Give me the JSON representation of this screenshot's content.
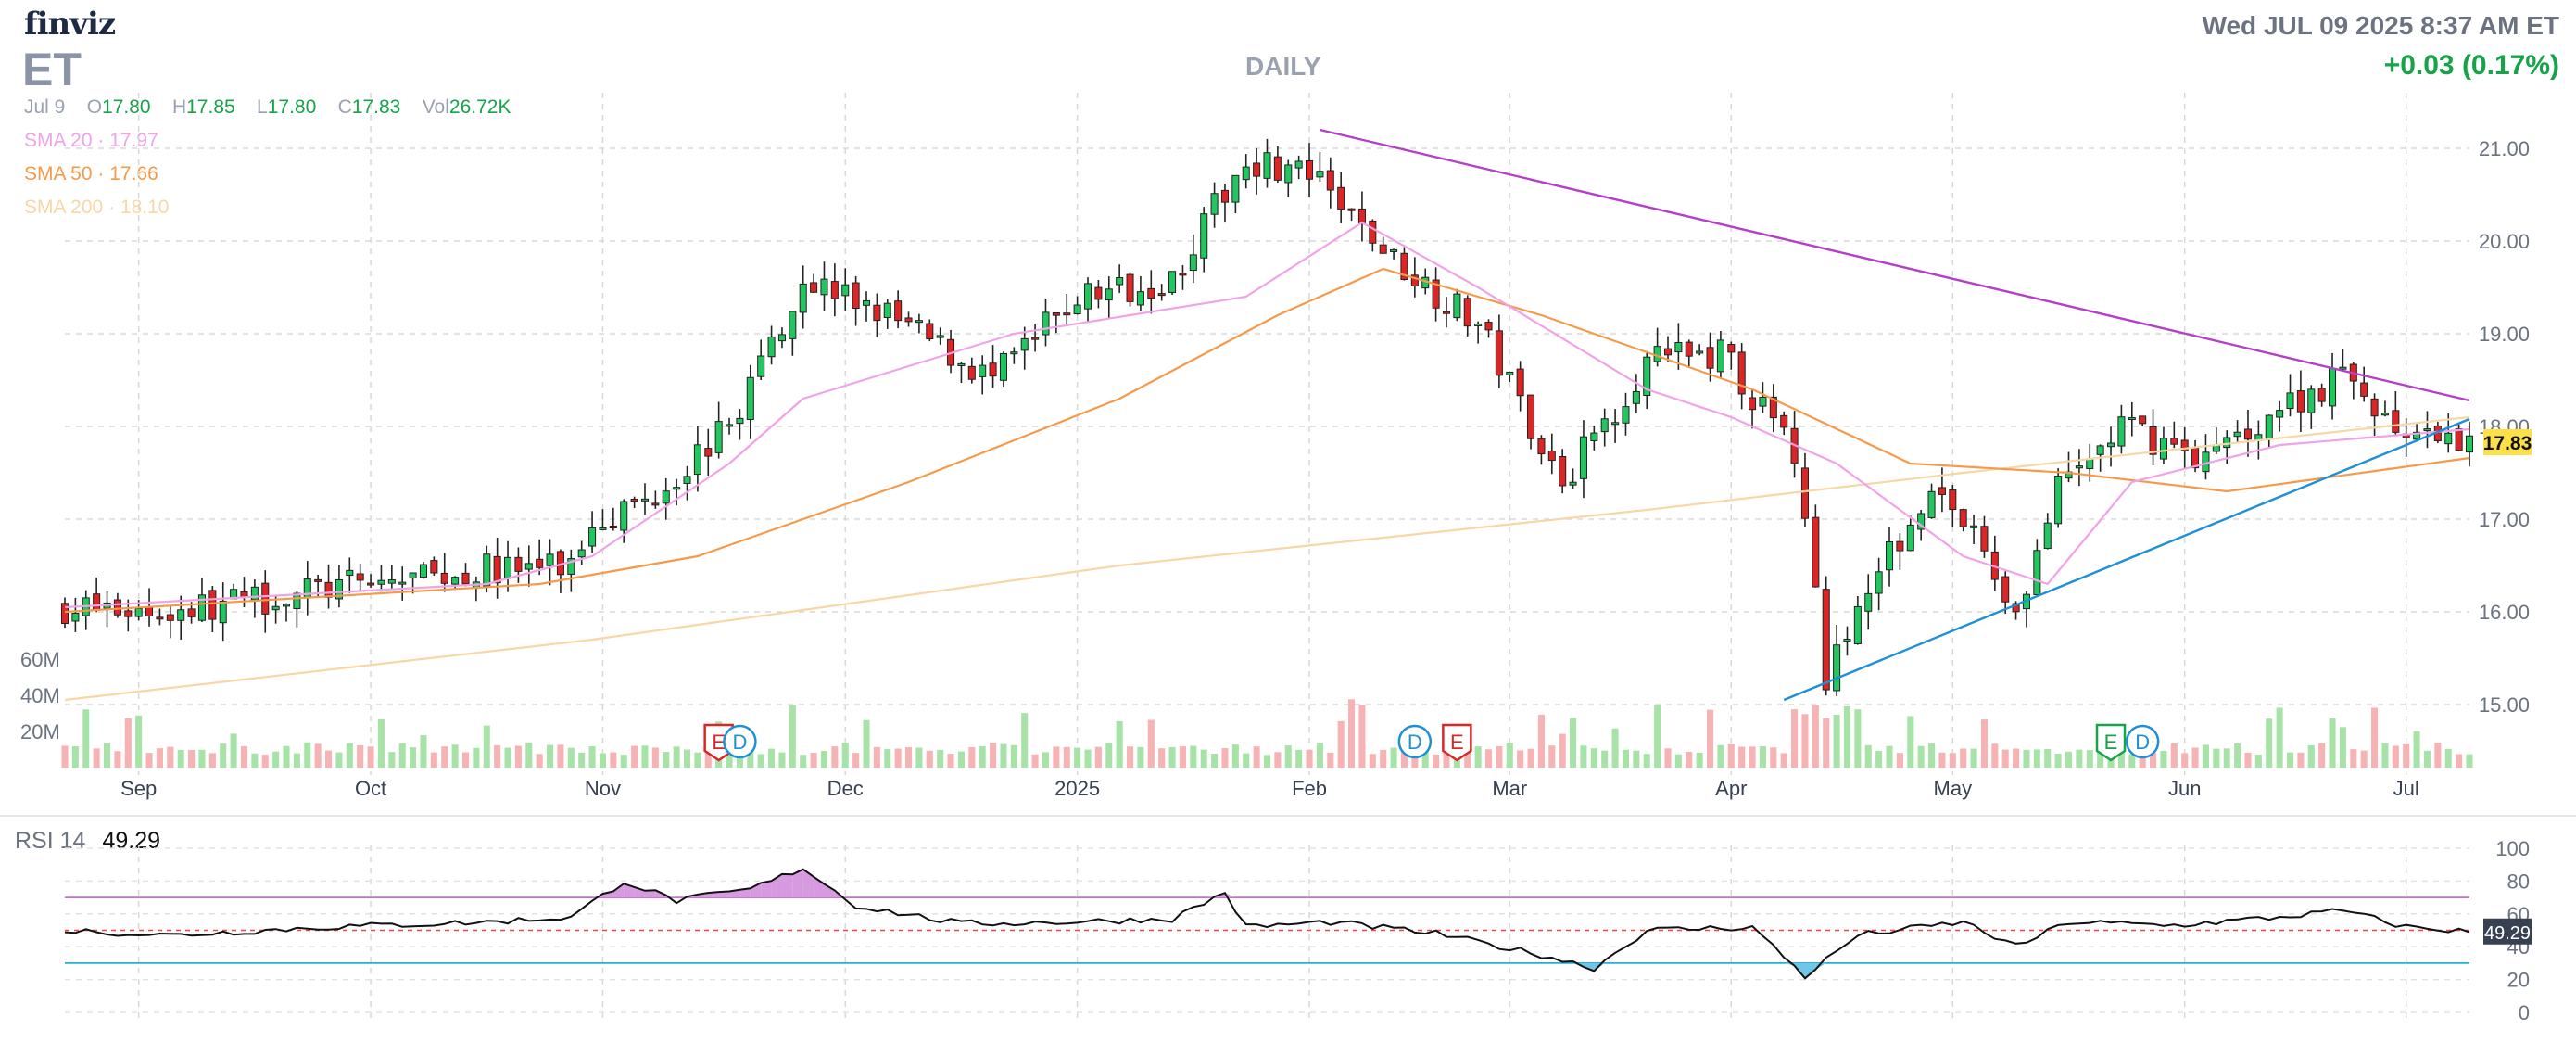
{
  "header": {
    "logo": "finviz",
    "ticker": "ET",
    "datetime": "Wed JUL 09 2025 8:37 AM ET",
    "change": "+0.03 (0.17%)",
    "period": "DAILY"
  },
  "ohlc": {
    "date": "Jul 9",
    "open_label": "O",
    "open": "17.80",
    "high_label": "H",
    "high": "17.85",
    "low_label": "L",
    "low": "17.80",
    "close_label": "C",
    "close": "17.83",
    "vol_label": "Vol",
    "vol": "26.72K"
  },
  "sma": [
    {
      "label": "SMA 20",
      "value": "17.97",
      "color": "#f0a3e6"
    },
    {
      "label": "SMA 50",
      "value": "17.66",
      "color": "#f59a4a"
    },
    {
      "label": "SMA 200",
      "value": "18.10",
      "color": "#f7d7a6"
    }
  ],
  "rsi": {
    "label": "RSI 14",
    "value": "49.29"
  },
  "colors": {
    "up": "#22c55e",
    "down": "#dc2626",
    "trend_upper": "#b53fc9",
    "trend_lower": "#1e90d6",
    "rsi_overbought": "#c86dd7",
    "rsi_oversold": "#23b0d6",
    "last_price_bg": "#fde047"
  },
  "chart_data": {
    "type": "candlestick",
    "x_ticks": [
      "Sep",
      "Oct",
      "Nov",
      "Dec",
      "2025",
      "Feb",
      "Mar",
      "Apr",
      "May",
      "Jun",
      "Jul"
    ],
    "y_ticks": [
      "15.00",
      "16.00",
      "17.00",
      "18.00",
      "19.00",
      "20.00",
      "21.00"
    ],
    "ylim": [
      14.2,
      21.6
    ],
    "volume_ticks": [
      "20M",
      "40M",
      "60M"
    ],
    "rsi_ticks": [
      "0",
      "20",
      "40",
      "60",
      "80",
      "100"
    ],
    "last_price": "17.83",
    "rsi_last": "49.29",
    "event_markers": [
      {
        "label": "E",
        "type": "earnings",
        "date": "Nov 6",
        "color": "#dc2626"
      },
      {
        "label": "D",
        "type": "dividend",
        "date": "Nov 7",
        "color": "#1e90d6"
      },
      {
        "label": "D",
        "type": "dividend",
        "date": "Feb 7",
        "color": "#1e90d6"
      },
      {
        "label": "E",
        "type": "earnings",
        "date": "Feb 11",
        "color": "#dc2626"
      },
      {
        "label": "E",
        "type": "earnings",
        "date": "May 6",
        "color": "#16a34a"
      },
      {
        "label": "D",
        "type": "dividend",
        "date": "May 8",
        "color": "#1e90d6"
      }
    ],
    "close_waypoints": [
      [
        0,
        16.05
      ],
      [
        10,
        16.0
      ],
      [
        25,
        16.25
      ],
      [
        40,
        16.45
      ],
      [
        48,
        16.5
      ],
      [
        50,
        17.0
      ],
      [
        55,
        17.2
      ],
      [
        63,
        18.0
      ],
      [
        70,
        19.6
      ],
      [
        78,
        19.2
      ],
      [
        88,
        18.5
      ],
      [
        96,
        19.4
      ],
      [
        105,
        19.6
      ],
      [
        112,
        20.9
      ],
      [
        118,
        20.7
      ],
      [
        126,
        19.8
      ],
      [
        134,
        19.1
      ],
      [
        142,
        17.4
      ],
      [
        150,
        18.7
      ],
      [
        157,
        18.8
      ],
      [
        164,
        17.7
      ],
      [
        167,
        15.3
      ],
      [
        171,
        16.2
      ],
      [
        177,
        17.4
      ],
      [
        181,
        16.8
      ],
      [
        185,
        16.0
      ],
      [
        189,
        17.3
      ],
      [
        195,
        18.0
      ],
      [
        203,
        17.65
      ],
      [
        210,
        18.2
      ],
      [
        216,
        18.55
      ],
      [
        223,
        17.8
      ],
      [
        228,
        17.83
      ]
    ],
    "sma20_waypoints": [
      [
        0,
        16.05
      ],
      [
        40,
        16.3
      ],
      [
        50,
        16.6
      ],
      [
        63,
        17.6
      ],
      [
        70,
        18.3
      ],
      [
        90,
        19.0
      ],
      [
        112,
        19.4
      ],
      [
        123,
        20.2
      ],
      [
        134,
        19.5
      ],
      [
        150,
        18.4
      ],
      [
        158,
        18.1
      ],
      [
        168,
        17.6
      ],
      [
        180,
        16.6
      ],
      [
        188,
        16.3
      ],
      [
        196,
        17.4
      ],
      [
        210,
        17.8
      ],
      [
        228,
        17.97
      ]
    ],
    "sma50_waypoints": [
      [
        0,
        16.0
      ],
      [
        45,
        16.3
      ],
      [
        60,
        16.6
      ],
      [
        80,
        17.4
      ],
      [
        100,
        18.3
      ],
      [
        115,
        19.2
      ],
      [
        125,
        19.7
      ],
      [
        140,
        19.2
      ],
      [
        160,
        18.4
      ],
      [
        175,
        17.6
      ],
      [
        190,
        17.5
      ],
      [
        205,
        17.3
      ],
      [
        228,
        17.66
      ]
    ],
    "sma200_waypoints": [
      [
        0,
        15.05
      ],
      [
        50,
        15.7
      ],
      [
        100,
        16.5
      ],
      [
        150,
        17.1
      ],
      [
        180,
        17.5
      ],
      [
        228,
        18.1
      ]
    ],
    "rsi_waypoints": [
      [
        0,
        50
      ],
      [
        10,
        47
      ],
      [
        25,
        52
      ],
      [
        40,
        55
      ],
      [
        48,
        58
      ],
      [
        53,
        80
      ],
      [
        58,
        68
      ],
      [
        65,
        75
      ],
      [
        70,
        88
      ],
      [
        75,
        65
      ],
      [
        85,
        54
      ],
      [
        95,
        55
      ],
      [
        105,
        57
      ],
      [
        110,
        73
      ],
      [
        112,
        52
      ],
      [
        120,
        55
      ],
      [
        130,
        48
      ],
      [
        140,
        35
      ],
      [
        145,
        27
      ],
      [
        150,
        50
      ],
      [
        160,
        52
      ],
      [
        165,
        22
      ],
      [
        170,
        47
      ],
      [
        180,
        55
      ],
      [
        185,
        40
      ],
      [
        190,
        55
      ],
      [
        200,
        53
      ],
      [
        210,
        58
      ],
      [
        216,
        62
      ],
      [
        222,
        52
      ],
      [
        228,
        49.29
      ]
    ],
    "trendlines": [
      {
        "name": "upper",
        "from": {
          "x": "Jan 17",
          "y": 21.15
        },
        "to": {
          "x": "Jul 9",
          "y": 18.25
        }
      },
      {
        "name": "lower",
        "from": {
          "x": "Apr 7",
          "y": 15.05
        },
        "to": {
          "x": "Jul 9",
          "y": 18.0
        }
      }
    ]
  }
}
